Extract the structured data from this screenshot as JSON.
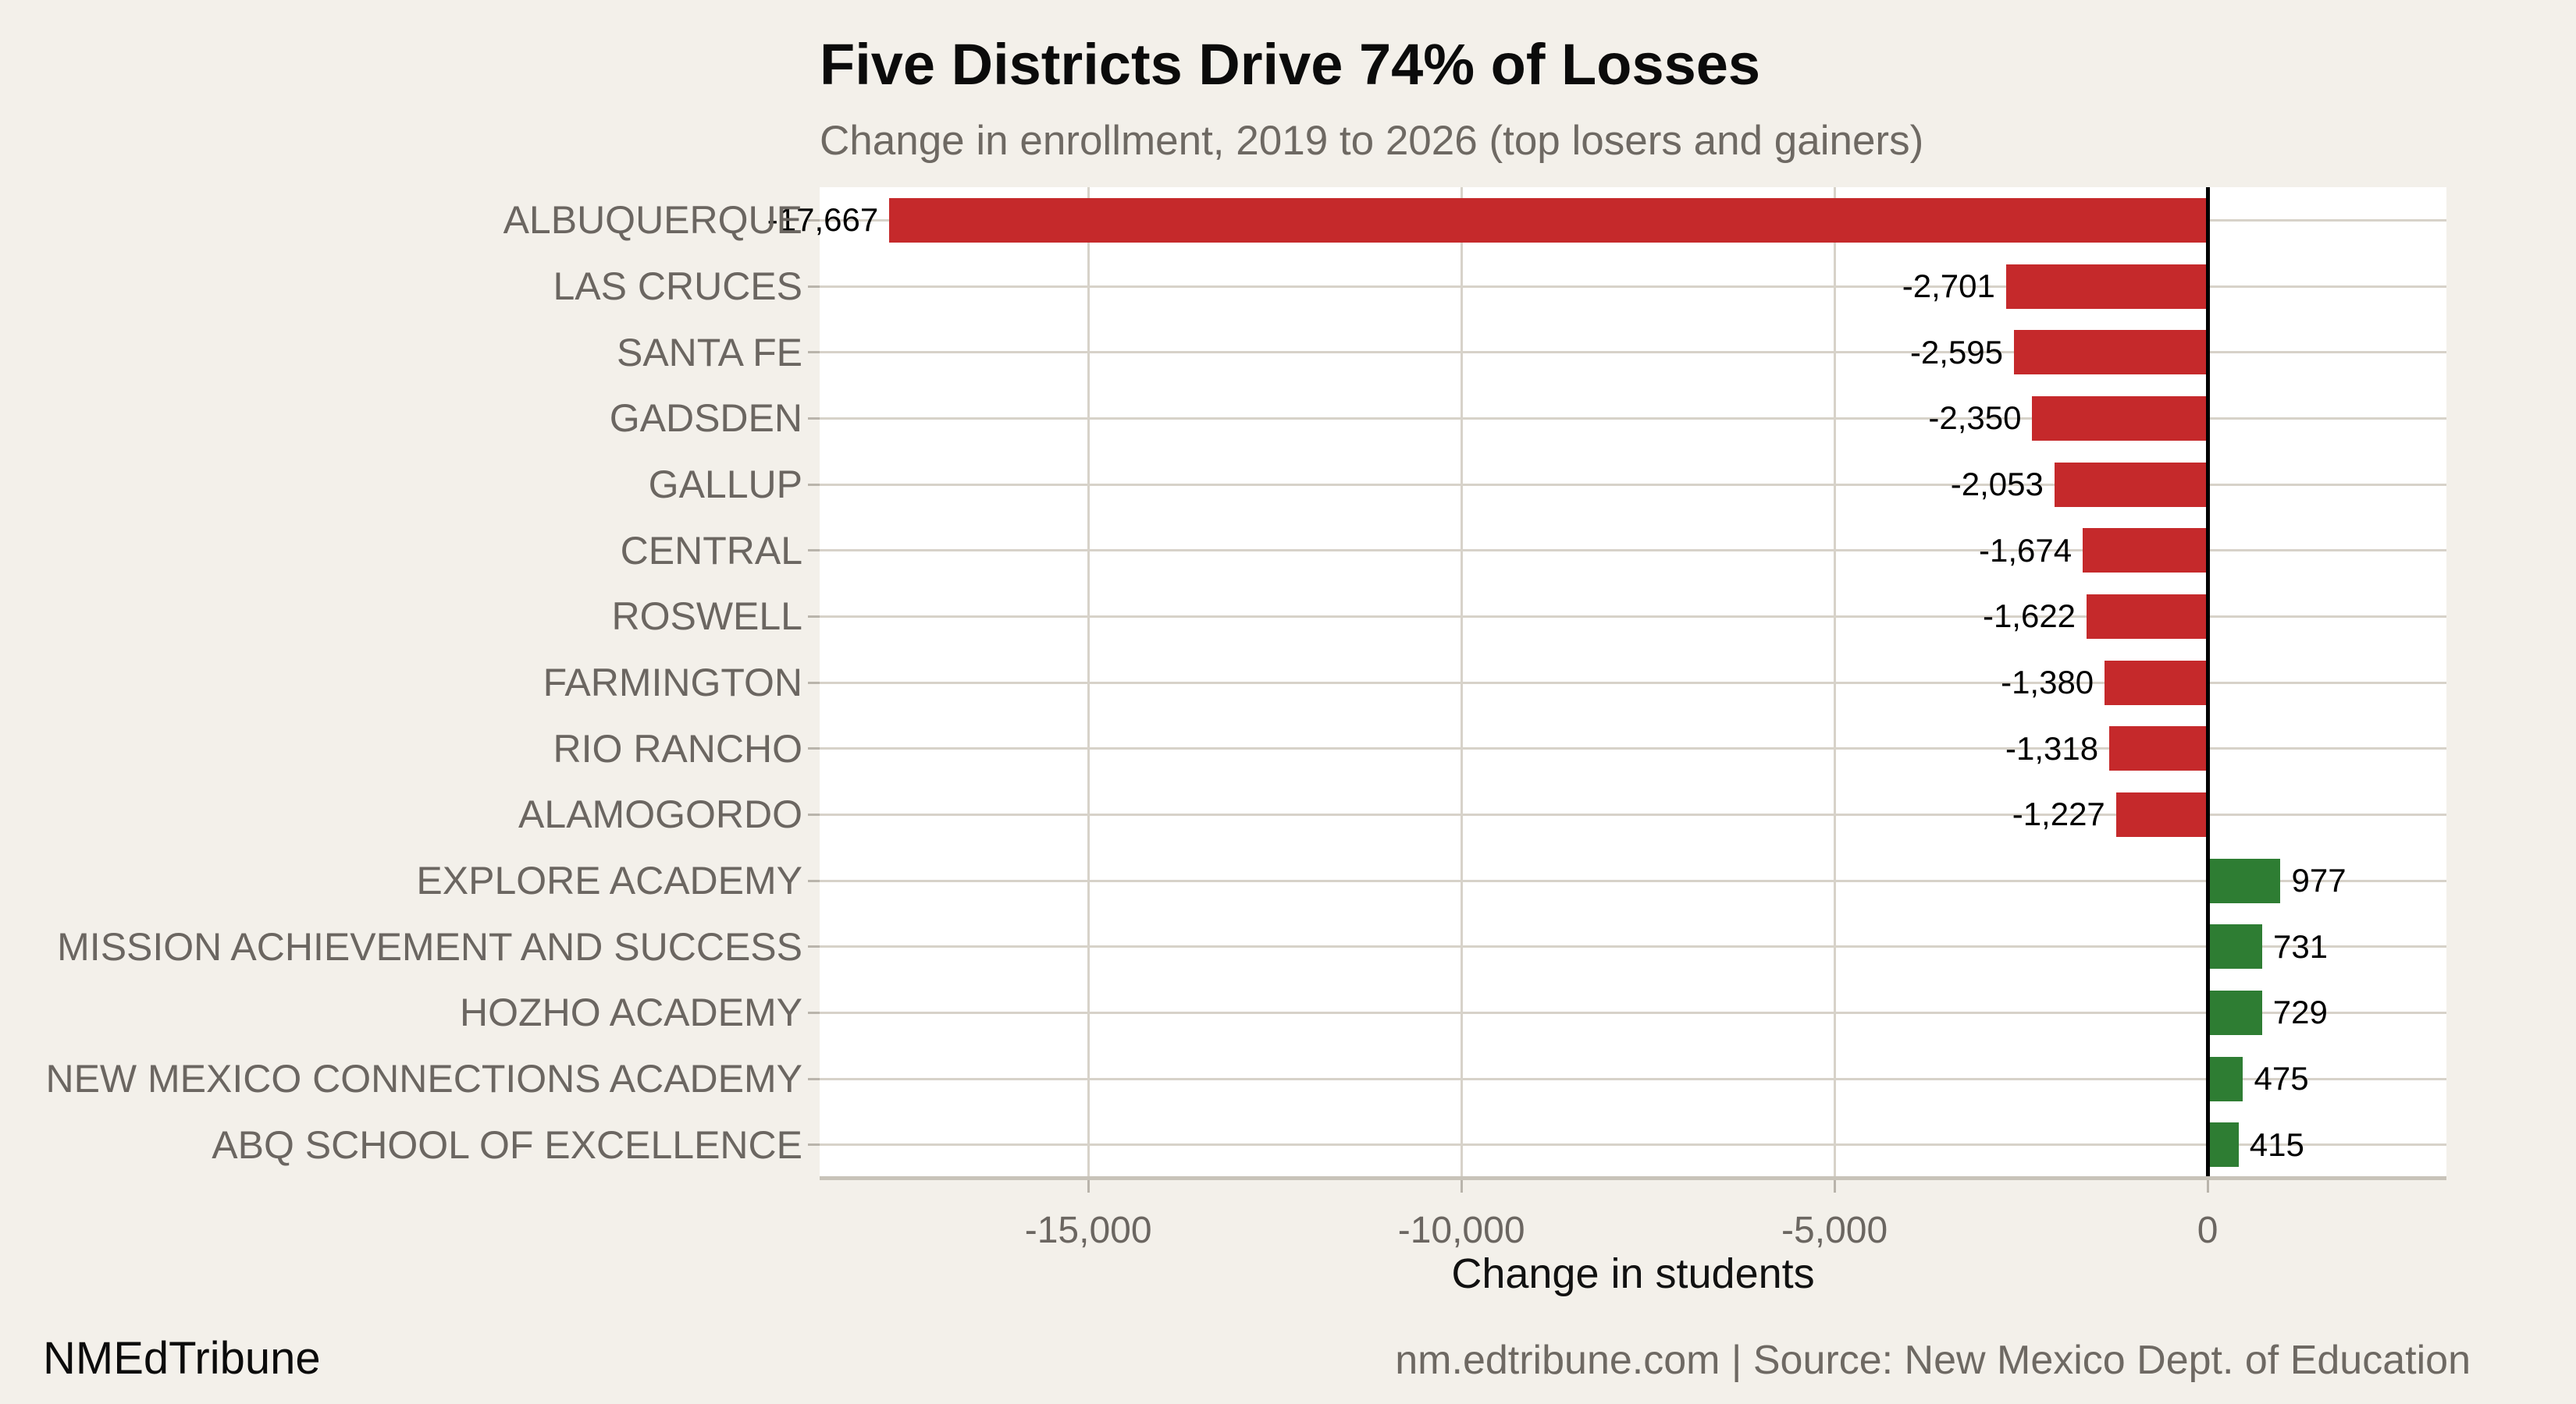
{
  "header": {
    "title": "Five Districts Drive 74% of Losses",
    "subtitle": "Change in enrollment, 2019 to 2026 (top losers and gainers)"
  },
  "footer": {
    "brand": "NMEdTribune",
    "source": "nm.edtribune.com | Source: New Mexico Dept. of Education"
  },
  "chart_data": {
    "type": "bar",
    "orientation": "horizontal",
    "title": "Five Districts Drive 74% of Losses",
    "subtitle": "Change in enrollment, 2019 to 2026 (top losers and gainers)",
    "xlabel": "Change in students",
    "ylabel": "",
    "xlim": [
      -18600,
      3200
    ],
    "grid": true,
    "categories": [
      "ALBUQUERQUE",
      "LAS CRUCES",
      "SANTA FE",
      "GADSDEN",
      "GALLUP",
      "CENTRAL",
      "ROSWELL",
      "FARMINGTON",
      "RIO RANCHO",
      "ALAMOGORDO",
      "EXPLORE ACADEMY",
      "MISSION ACHIEVEMENT AND SUCCESS",
      "HOZHO ACADEMY",
      "NEW MEXICO CONNECTIONS ACADEMY",
      "ABQ SCHOOL OF EXCELLENCE"
    ],
    "values": [
      -17667,
      -2701,
      -2595,
      -2350,
      -2053,
      -1674,
      -1622,
      -1380,
      -1318,
      -1227,
      977,
      731,
      729,
      475,
      415
    ],
    "value_labels": [
      "-17,667",
      "-2,701",
      "-2,595",
      "-2,350",
      "-2,053",
      "-1,674",
      "-1,622",
      "-1,380",
      "-1,318",
      "-1,227",
      "977",
      "731",
      "729",
      "475",
      "415"
    ],
    "x_ticks": [
      {
        "value": -15000,
        "label": "-15,000"
      },
      {
        "value": -10000,
        "label": "-10,000"
      },
      {
        "value": -5000,
        "label": "-5,000"
      },
      {
        "value": 0,
        "label": "0"
      }
    ],
    "colors": {
      "loss": "#c5292b",
      "gain": "#2e7d33",
      "background": "#f3f0ea",
      "plot_background": "#ffffff",
      "gridline": "#d7d2c9",
      "zero_line": "#000000",
      "label_gray": "#6b6661"
    }
  }
}
